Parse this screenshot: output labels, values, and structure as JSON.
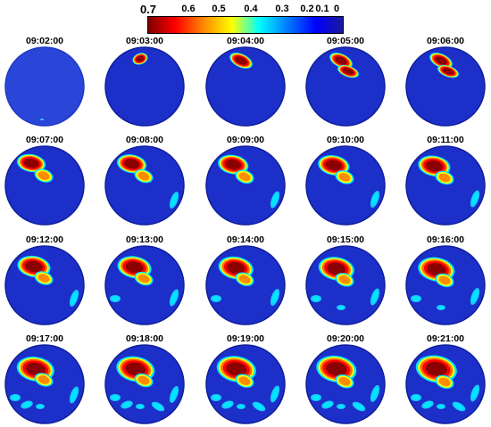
{
  "colorbar": {
    "ticks": [
      "0.7",
      "0.6",
      "0.5",
      "0.4",
      "0.3",
      "0.2",
      "0.1",
      "0"
    ],
    "range": [
      0,
      0.7
    ],
    "direction": "high-left",
    "colors": [
      "#7f0000",
      "#ff0000",
      "#ff8c00",
      "#ffff00",
      "#00ffff",
      "#0080ff",
      "#0000ff",
      "#1a1a9a"
    ]
  },
  "frames": [
    {
      "time": "09:02:00"
    },
    {
      "time": "09:03:00"
    },
    {
      "time": "09:04:00"
    },
    {
      "time": "09:05:00"
    },
    {
      "time": "09:06:00"
    },
    {
      "time": "09:07:00"
    },
    {
      "time": "09:08:00"
    },
    {
      "time": "09:09:00"
    },
    {
      "time": "09:10:00"
    },
    {
      "time": "09:11:00"
    },
    {
      "time": "09:12:00"
    },
    {
      "time": "09:13:00"
    },
    {
      "time": "09:14:00"
    },
    {
      "time": "09:15:00"
    },
    {
      "time": "09:16:00"
    },
    {
      "time": "09:17:00"
    },
    {
      "time": "09:18:00"
    },
    {
      "time": "09:19:00"
    },
    {
      "time": "09:20:00"
    },
    {
      "time": "09:21:00"
    }
  ]
}
